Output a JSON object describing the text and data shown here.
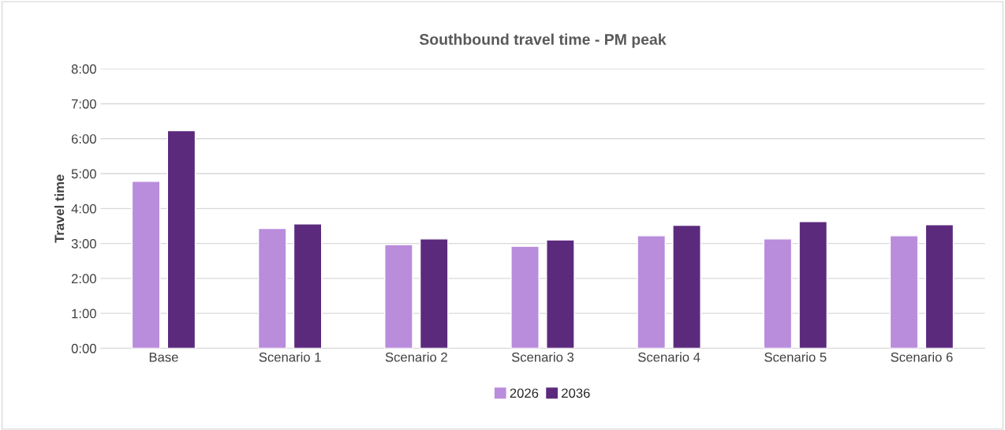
{
  "chart_data": {
    "type": "bar",
    "title": "Southbound travel time - PM peak",
    "ylabel": "Travel time",
    "categories": [
      "Base",
      "Scenario 1",
      "Scenario 2",
      "Scenario 3",
      "Scenario 4",
      "Scenario 5",
      "Scenario 6"
    ],
    "series": [
      {
        "name": "2026",
        "color": "#b98cdc",
        "values": [
          4.78,
          3.43,
          2.97,
          2.92,
          3.22,
          3.13,
          3.22
        ]
      },
      {
        "name": "2036",
        "color": "#5b2a7d",
        "values": [
          6.23,
          3.56,
          3.13,
          3.1,
          3.52,
          3.63,
          3.54
        ]
      }
    ],
    "ylim": [
      0,
      8
    ],
    "yticks": [
      {
        "value": 0,
        "label": "0:00"
      },
      {
        "value": 1,
        "label": "1:00"
      },
      {
        "value": 2,
        "label": "2:00"
      },
      {
        "value": 3,
        "label": "3:00"
      },
      {
        "value": 4,
        "label": "4:00"
      },
      {
        "value": 5,
        "label": "5:00"
      },
      {
        "value": 6,
        "label": "6:00"
      },
      {
        "value": 7,
        "label": "7:00"
      },
      {
        "value": 8,
        "label": "8:00"
      }
    ],
    "grid": "y",
    "legend": "bottom"
  }
}
